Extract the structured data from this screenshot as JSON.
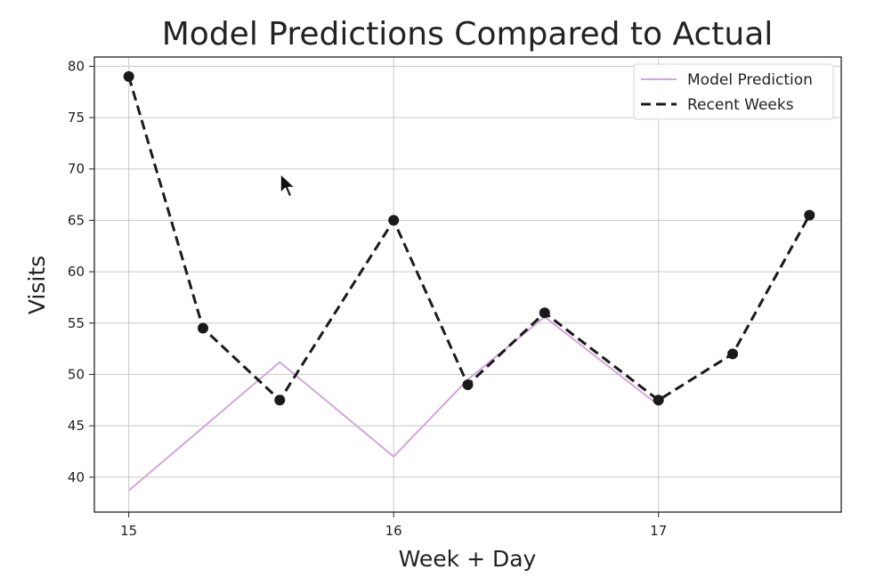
{
  "chart_data": {
    "type": "line",
    "title": "Model Predictions Compared to Actual",
    "xlabel": "Week + Day",
    "ylabel": "Visits",
    "xlim": [
      14.87,
      17.69
    ],
    "ylim": [
      36.6,
      80.9
    ],
    "xticks": [
      15,
      16,
      17
    ],
    "xtick_labels": [
      "15",
      "16",
      "17"
    ],
    "yticks": [
      40,
      45,
      50,
      55,
      60,
      65,
      70,
      75,
      80
    ],
    "ytick_labels": [
      "40",
      "45",
      "50",
      "55",
      "60",
      "65",
      "70",
      "75",
      "80"
    ],
    "grid": true,
    "legend_position": "top-right",
    "series": [
      {
        "name": "Model Prediction",
        "style": "solid",
        "color": "#d4a5dc",
        "markers": false,
        "x": [
          15.0,
          15.57,
          16.0,
          16.28,
          16.57,
          17.0
        ],
        "y": [
          38.7,
          51.2,
          42.0,
          49.5,
          55.6,
          47.0
        ]
      },
      {
        "name": "Recent Weeks",
        "style": "dashed",
        "color": "#1a1a1a",
        "markers": true,
        "x": [
          15.0,
          15.28,
          15.57,
          16.0,
          16.28,
          16.57,
          17.0,
          17.28,
          17.57
        ],
        "y": [
          79.0,
          54.5,
          47.5,
          65.0,
          49.0,
          56.0,
          47.5,
          52.0,
          65.5
        ]
      }
    ]
  }
}
